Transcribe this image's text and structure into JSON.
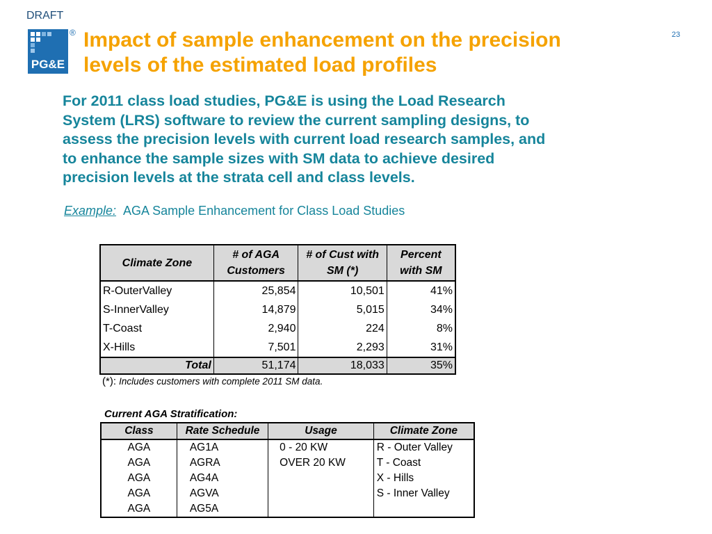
{
  "header": {
    "draft_label": "DRAFT",
    "logo_text": "PG&E",
    "registered_mark": "®",
    "page_number": "23",
    "title_lines": [
      "Impact of sample enhancement on the precision",
      "levels of the estimated load profiles"
    ]
  },
  "intro_lines": [
    "For 2011 class load studies, PG&E is using the Load Research",
    "System (LRS) software to review the current sampling designs, to",
    "assess the precision levels with current load research samples, and",
    "to enhance the sample sizes with SM data to achieve desired",
    "precision levels at the strata cell and class levels."
  ],
  "example": {
    "label": "Example:",
    "text": "AGA Sample Enhancement for Class Load Studies"
  },
  "sample_table": {
    "headers": [
      "Climate Zone",
      "# of AGA Customers",
      "# of Cust with SM (*)",
      "Percent with SM"
    ],
    "rows": [
      [
        "R-OuterValley",
        "25,854",
        "10,501",
        "41%"
      ],
      [
        "S-InnerValley",
        "14,879",
        "5,015",
        "34%"
      ],
      [
        "T-Coast",
        "2,940",
        "224",
        "8%"
      ],
      [
        "X-Hills",
        "7,501",
        "2,293",
        "31%"
      ]
    ],
    "total": [
      "Total",
      "51,174",
      "18,033",
      "35%"
    ]
  },
  "footnote": {
    "marker": "(*):",
    "text": "Includes customers with complete 2011 SM data."
  },
  "stratification": {
    "title": "Current AGA Stratification:",
    "headers": [
      "Class",
      "Rate Schedule",
      "Usage",
      "Climate Zone"
    ],
    "rows": [
      [
        "AGA",
        "AG1A",
        "0 - 20 KW",
        "R - Outer Valley"
      ],
      [
        "AGA",
        "AGRA",
        "OVER 20 KW",
        "T - Coast"
      ],
      [
        "AGA",
        "AG4A",
        "",
        "X - Hills"
      ],
      [
        "AGA",
        "AGVA",
        "",
        "S - Inner Valley"
      ],
      [
        "AGA",
        "AG5A",
        "",
        ""
      ]
    ]
  },
  "colors": {
    "title": "#f5a200",
    "body_text": "#16859b",
    "logo_blue": "#1f6fb2",
    "header_fill": "#d9d9d9"
  }
}
